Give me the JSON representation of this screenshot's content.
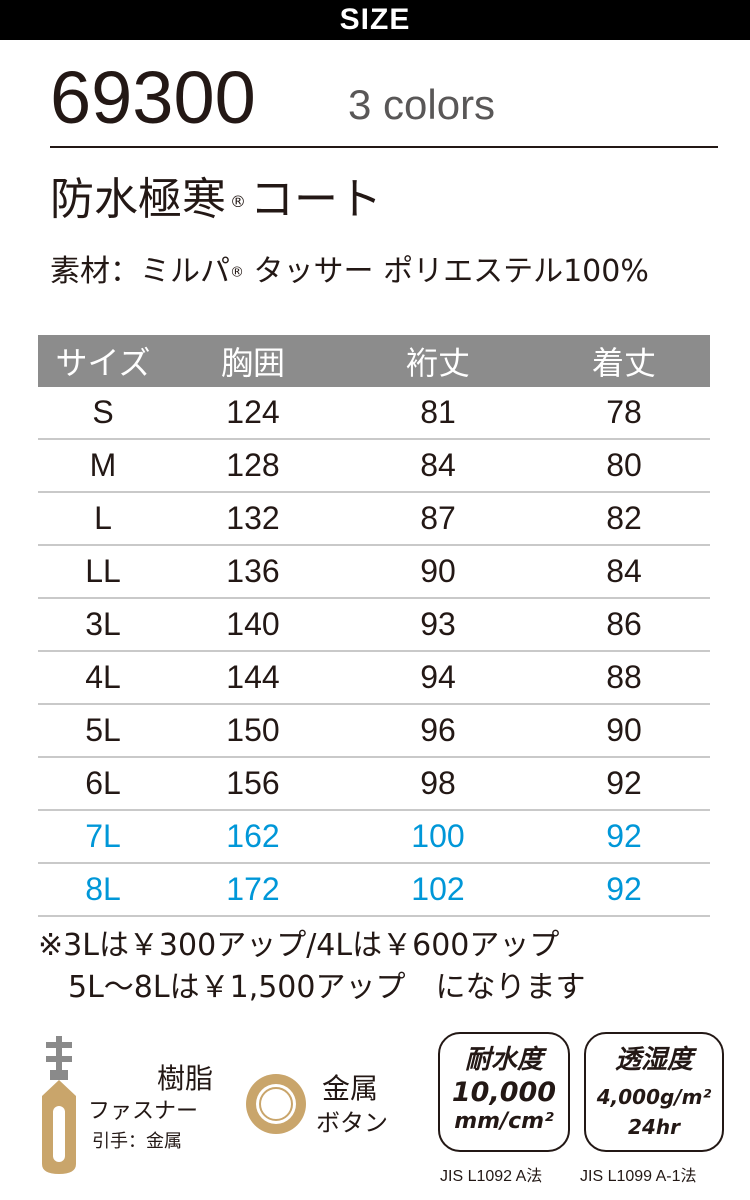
{
  "header": {
    "title": "SIZE"
  },
  "product": {
    "model": "69300",
    "colors": "3 colors",
    "name": "防水極寒",
    "name_mark": "®",
    "name_suffix": "コート",
    "material_prefix": "素材：ミルパ",
    "material_mark": "®",
    "material_suffix": " タッサー ポリエステル100%"
  },
  "size_table": {
    "headers": [
      "サイズ",
      "胸囲",
      "裄丈",
      "着丈"
    ],
    "rows": [
      {
        "size": "S",
        "chest": "124",
        "sleeve": "81",
        "length": "78"
      },
      {
        "size": "M",
        "chest": "128",
        "sleeve": "84",
        "length": "80"
      },
      {
        "size": "L",
        "chest": "132",
        "sleeve": "87",
        "length": "82"
      },
      {
        "size": "LL",
        "chest": "136",
        "sleeve": "90",
        "length": "84"
      },
      {
        "size": "3L",
        "chest": "140",
        "sleeve": "93",
        "length": "86"
      },
      {
        "size": "4L",
        "chest": "144",
        "sleeve": "94",
        "length": "88"
      },
      {
        "size": "5L",
        "chest": "150",
        "sleeve": "96",
        "length": "90"
      },
      {
        "size": "6L",
        "chest": "156",
        "sleeve": "98",
        "length": "92"
      },
      {
        "size": "7L",
        "chest": "162",
        "sleeve": "100",
        "length": "92"
      },
      {
        "size": "8L",
        "chest": "172",
        "sleeve": "102",
        "length": "92"
      }
    ]
  },
  "note": {
    "line1": "※3Lは￥300アップ/4Lは￥600アップ",
    "line2": "　5L～8Lは￥1,500アップ　になります"
  },
  "features": {
    "zipper_title": "樹脂",
    "zipper_sub": "ファスナー",
    "zipper_pull": "引手：金属",
    "button_title": "金属",
    "button_sub": "ボタン"
  },
  "badges": {
    "waterproof_title": "耐水度",
    "waterproof_value": "10,000",
    "waterproof_unit": "mm/cm²",
    "waterproof_std": "JIS L1092 A法",
    "breath_title": "透湿度",
    "breath_value": "4,000g/m²",
    "breath_unit": "24hr",
    "breath_std": "JIS L1099 A-1法"
  },
  "colors": {
    "text": "#231815",
    "header_bg": "#000000",
    "table_head_bg": "#8c8c8c",
    "accent_blue": "#0097d8",
    "gold": "#c9a56b"
  }
}
